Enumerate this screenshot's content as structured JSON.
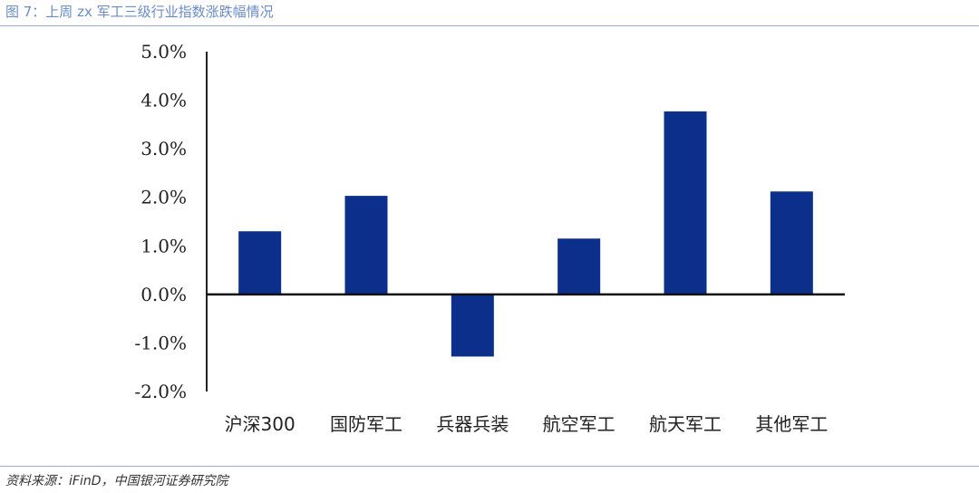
{
  "figure": {
    "title": "图 7：上周 zx 军工三级行业指数涨跌幅情况",
    "source": "资料来源：iFinD，中国银河证券研究院"
  },
  "chart_data": {
    "type": "bar",
    "categories": [
      "沪深300",
      "国防军工",
      "兵器兵装",
      "航空军工",
      "航天军工",
      "其他军工"
    ],
    "values": [
      1.3,
      2.03,
      -1.28,
      1.15,
      3.77,
      2.12
    ],
    "ylim": [
      -2.0,
      5.0
    ],
    "yticks": [
      5.0,
      4.0,
      3.0,
      2.0,
      1.0,
      0.0,
      -1.0,
      -2.0
    ],
    "ytick_labels": [
      "5.0%",
      "4.0%",
      "3.0%",
      "2.0%",
      "1.0%",
      "0.0%",
      "-1.0%",
      "-2.0%"
    ],
    "bar_color": "#0b2f8a",
    "grid": false,
    "legend": "none"
  }
}
